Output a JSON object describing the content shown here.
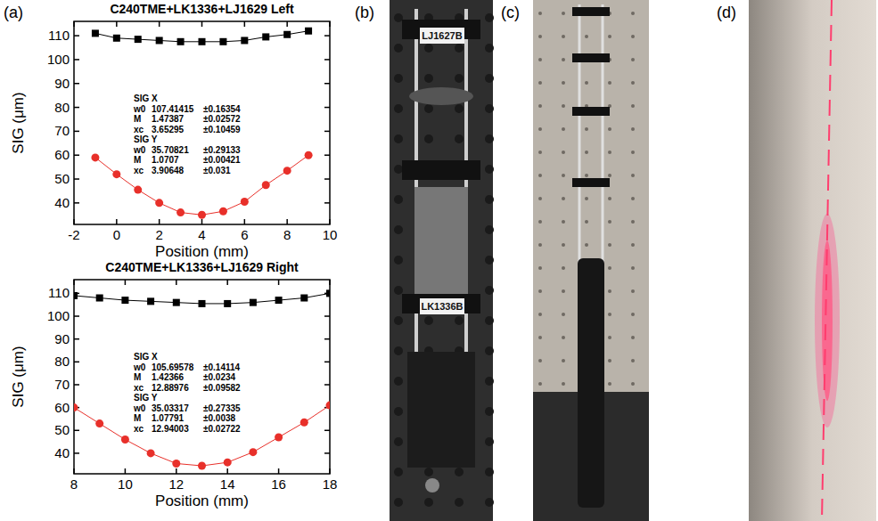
{
  "chart_data": [
    {
      "type": "scatter",
      "title": "C240TME+LK1336+LJ1629 Left",
      "x_label": "Position (mm)",
      "y_label": "SIG (μm)",
      "x": [
        -1,
        0,
        1,
        2,
        3,
        4,
        5,
        6,
        7,
        8,
        9
      ],
      "series": [
        {
          "color": "#000000",
          "marker": "square",
          "line_style": "solid",
          "values": [
            111,
            109,
            108.5,
            108,
            107.5,
            107.5,
            107.5,
            108,
            109.5,
            110.5,
            112
          ]
        },
        {
          "color": "#e8302a",
          "marker": "circle",
          "line_style": "solid",
          "values": [
            59,
            52,
            45.5,
            40,
            36,
            35,
            36.5,
            40.5,
            47.5,
            53.5,
            60
          ]
        }
      ],
      "xlim": [
        -2,
        10
      ],
      "xticks": [
        -2,
        0,
        2,
        4,
        6,
        8,
        10
      ],
      "ylim": [
        31,
        116
      ],
      "yticks": [
        40,
        50,
        60,
        70,
        80,
        90,
        100,
        110
      ],
      "grid": false,
      "annotations": [
        [
          "SIG X"
        ],
        [
          "w0",
          "107.41415",
          "±0.16354"
        ],
        [
          "M",
          "1.47387",
          "±0.02572"
        ],
        [
          "xc",
          "3.65295",
          "±0.10459"
        ],
        [
          "SIG Y"
        ],
        [
          "w0",
          "35.70821",
          "±0.29133"
        ],
        [
          "M",
          "1.0707",
          "±0.00421"
        ],
        [
          "xc",
          "3.90648",
          "±0.031"
        ]
      ]
    },
    {
      "type": "scatter",
      "title": "C240TME+LK1336+LJ1629 Right",
      "x_label": "Position (mm)",
      "y_label": "SIG (μm)",
      "x": [
        8,
        9,
        10,
        11,
        12,
        13,
        14,
        15,
        16,
        17,
        18
      ],
      "series": [
        {
          "color": "#000000",
          "marker": "square",
          "line_style": "solid",
          "values": [
            109,
            108,
            107,
            106.5,
            106,
            105.5,
            105.5,
            106,
            107,
            108,
            110
          ]
        },
        {
          "color": "#e8302a",
          "marker": "circle",
          "line_style": "solid",
          "values": [
            60,
            53,
            46,
            40,
            35.5,
            34.5,
            36,
            40.5,
            47,
            53.5,
            61
          ]
        }
      ],
      "xlim": [
        8,
        18
      ],
      "xticks": [
        8,
        10,
        12,
        14,
        16,
        18
      ],
      "ylim": [
        31,
        116
      ],
      "yticks": [
        40,
        50,
        60,
        70,
        80,
        90,
        100,
        110
      ],
      "grid": false,
      "annotations": [
        [
          "SIG X"
        ],
        [
          "w0",
          "105.69578",
          "±0.14114"
        ],
        [
          "M",
          "1.42366",
          "±0.0234"
        ],
        [
          "xc",
          "12.88976",
          "±0.09582"
        ],
        [
          "SIG Y"
        ],
        [
          "w0",
          "35.03317",
          "±0.27335"
        ],
        [
          "M",
          "1.07791",
          "±0.0038"
        ],
        [
          "xc",
          "12.94003",
          "±0.02722"
        ]
      ]
    }
  ],
  "panel_labels": [
    "(a)",
    "(b)",
    "(c)",
    "(d)"
  ],
  "photo_b_texts": [
    "LJ1627B",
    "LK1336B"
  ]
}
